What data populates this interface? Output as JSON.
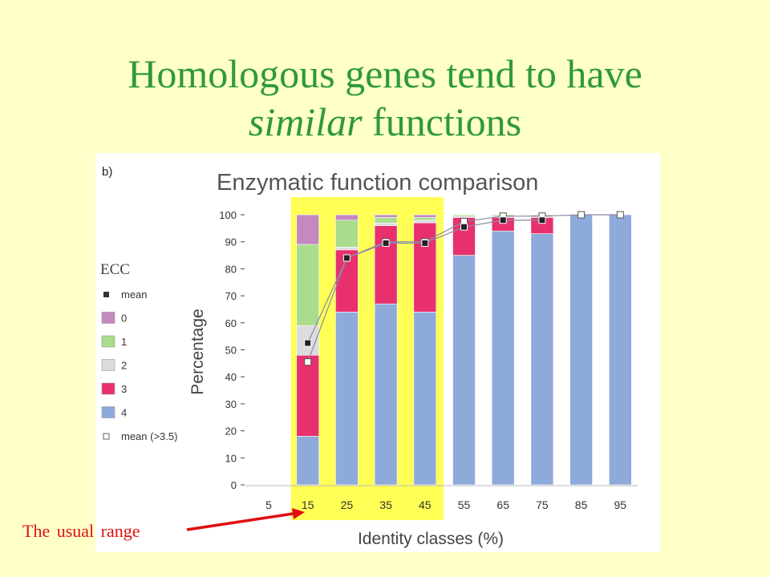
{
  "slide": {
    "title_line1": "Homologous genes tend to have",
    "title_line2_em": "similar",
    "title_line2_rest": " functions",
    "annotation": "The usual range"
  },
  "colors": {
    "background": "#ffffc8",
    "title": "#2e9a3a",
    "highlight": "#ffff55",
    "ecc4": "#8eaadb",
    "ecc3": "#e8306e",
    "ecc2": "#dcdcdc",
    "ecc1": "#a9dc8c",
    "ecc0": "#c48ac0",
    "arrow": "#e01010",
    "mean_line": "#8a8aa8"
  },
  "chart_data": {
    "type": "bar",
    "panel_label": "b)",
    "title": "Enzymatic function comparison",
    "xlabel": "Identity classes (%)",
    "ylabel": "Percentage",
    "ylim": [
      0,
      100
    ],
    "yticks": [
      0,
      10,
      20,
      30,
      40,
      50,
      60,
      70,
      80,
      90,
      100
    ],
    "categories": [
      "5",
      "15",
      "25",
      "35",
      "45",
      "55",
      "65",
      "75",
      "85",
      "95"
    ],
    "highlight_categories": [
      "15",
      "25",
      "35",
      "45"
    ],
    "legend_title": "ECC",
    "legend_position": "left",
    "legend_items": [
      {
        "key": "mean",
        "label": "mean",
        "marker": "filled-square"
      },
      {
        "key": "ecc0",
        "label": "0",
        "marker": "swatch"
      },
      {
        "key": "ecc1",
        "label": "1",
        "marker": "swatch"
      },
      {
        "key": "ecc2",
        "label": "2",
        "marker": "swatch"
      },
      {
        "key": "ecc3",
        "label": "3",
        "marker": "swatch"
      },
      {
        "key": "ecc4",
        "label": "4",
        "marker": "swatch"
      },
      {
        "key": "mean_hi",
        "label": "mean (>3.5)",
        "marker": "open-square"
      }
    ],
    "series": [
      {
        "name": "4",
        "color_key": "ecc4",
        "values": [
          null,
          18,
          64,
          67,
          64,
          85,
          94,
          93,
          100,
          100
        ]
      },
      {
        "name": "3",
        "color_key": "ecc3",
        "values": [
          null,
          30,
          23,
          29,
          33,
          14,
          5,
          6,
          0,
          0
        ]
      },
      {
        "name": "2",
        "color_key": "ecc2",
        "values": [
          null,
          11,
          1,
          1,
          1,
          0.5,
          0.5,
          0.5,
          0,
          0
        ]
      },
      {
        "name": "1",
        "color_key": "ecc1",
        "values": [
          null,
          30,
          10,
          2,
          1,
          0.5,
          0.5,
          0.5,
          0,
          0
        ]
      },
      {
        "name": "0",
        "color_key": "ecc0",
        "values": [
          null,
          11,
          2,
          1,
          1,
          0,
          0,
          0,
          0,
          0
        ]
      }
    ],
    "mean_markers": {
      "filled": [
        null,
        52.5,
        84,
        89.5,
        89.5,
        95.5,
        98,
        98,
        null,
        null
      ],
      "open": [
        null,
        45.5,
        84,
        90,
        90,
        97.5,
        99.5,
        99.5,
        100,
        100
      ]
    }
  }
}
